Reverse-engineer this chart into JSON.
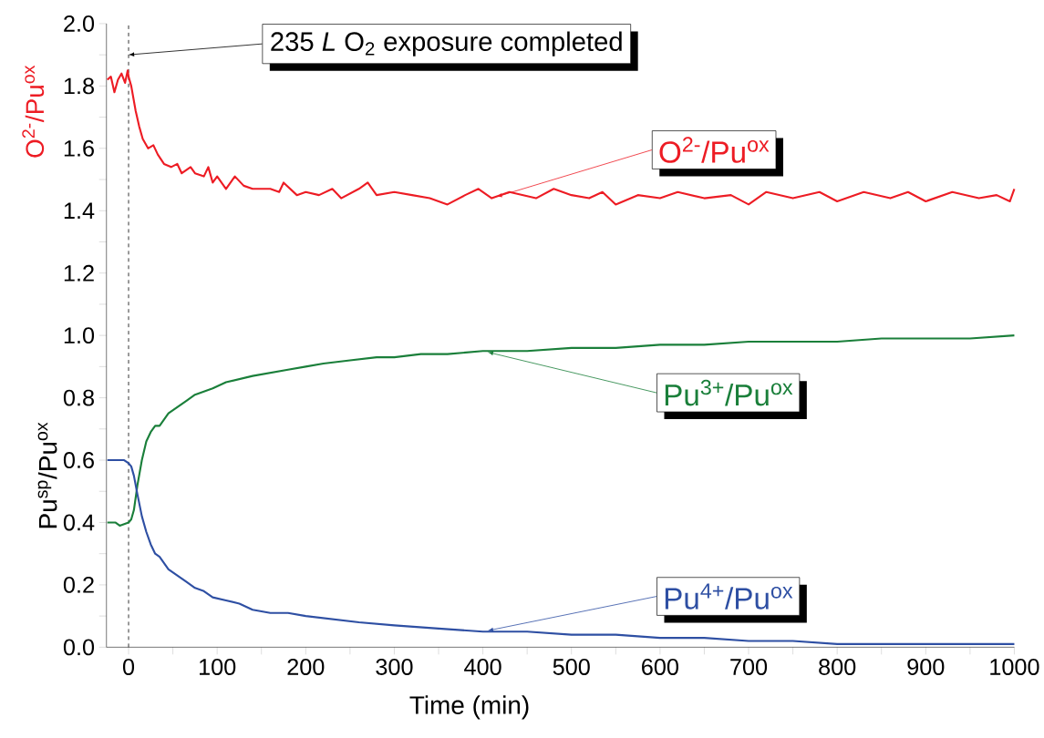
{
  "chart_data": {
    "type": "line",
    "xlabel": "Time (min)",
    "ylabel": "Pu$^{sp}$/Pu$^{ox}$",
    "annotations": [
      "O$^{2-}$/Pu$^{ox}$",
      {
        "text": "235 *L* O$_{2}$ exposure completed",
        "x": 0,
        "y": 1.9
      }
    ],
    "xlim": [
      -25,
      1000
    ],
    "ylim": [
      0,
      2
    ],
    "xticks": [
      0,
      {
        "value": 50,
        "label": null
      },
      100,
      {
        "value": 150,
        "label": null
      },
      200,
      {
        "value": 250,
        "label": null
      },
      300,
      {
        "value": 350,
        "label": null
      },
      400,
      {
        "value": 450,
        "label": null
      },
      500,
      {
        "value": 550,
        "label": null
      },
      600,
      {
        "value": 650,
        "label": null
      },
      700,
      {
        "value": 750,
        "label": null
      },
      800,
      {
        "value": 850,
        "label": null
      },
      900,
      {
        "value": 950,
        "label": null
      },
      1000
    ],
    "yticks": [
      {
        "value": 0,
        "label": "0.0"
      },
      {
        "value": 0.1,
        "label": null
      },
      {
        "value": 0.2,
        "label": "0.2"
      },
      {
        "value": 0.3,
        "label": null
      },
      {
        "value": 0.4,
        "label": "0.4"
      },
      {
        "value": 0.5,
        "label": null
      },
      {
        "value": 0.6,
        "label": "0.6"
      },
      {
        "value": 0.7,
        "label": null
      },
      {
        "value": 0.8,
        "label": "0.8"
      },
      {
        "value": 0.9,
        "label": null
      },
      {
        "value": 1.0,
        "label": "1.0"
      },
      {
        "value": 1.1,
        "label": null
      },
      {
        "value": 1.2,
        "label": "1.2"
      },
      {
        "value": 1.3,
        "label": null
      },
      {
        "value": 1.4,
        "label": "1.4"
      },
      {
        "value": 1.5,
        "label": null
      },
      {
        "value": 1.6,
        "label": "1.6"
      },
      {
        "value": 1.7,
        "label": null
      },
      {
        "value": 1.8,
        "label": "1.8"
      },
      {
        "value": 1.9,
        "label": null
      },
      {
        "value": 2.0,
        "label": "2.0"
      }
    ],
    "ref_lines": [
      {
        "axis": "x",
        "value": 0,
        "line_style": "dashed",
        "color": "#000000"
      }
    ],
    "series": [
      {
        "name": "O$^{2-}$/Pu$^{ox}$",
        "color": "#ed1c24",
        "x": [
          -24,
          -20,
          -16,
          -12,
          -8,
          -4,
          -1,
          0,
          3,
          8,
          12,
          16,
          22,
          28,
          33,
          40,
          48,
          55,
          60,
          70,
          75,
          85,
          90,
          95,
          100,
          110,
          120,
          130,
          140,
          160,
          170,
          175,
          190,
          200,
          215,
          230,
          240,
          260,
          270,
          280,
          300,
          320,
          340,
          360,
          380,
          395,
          410,
          430,
          460,
          480,
          500,
          520,
          535,
          550,
          575,
          600,
          620,
          650,
          680,
          700,
          720,
          750,
          780,
          800,
          830,
          860,
          880,
          900,
          930,
          960,
          980,
          995,
          1000
        ],
        "values": [
          1.82,
          1.83,
          1.78,
          1.82,
          1.84,
          1.81,
          1.85,
          1.83,
          1.8,
          1.72,
          1.67,
          1.63,
          1.6,
          1.61,
          1.58,
          1.55,
          1.54,
          1.55,
          1.52,
          1.54,
          1.52,
          1.51,
          1.54,
          1.49,
          1.51,
          1.47,
          1.51,
          1.48,
          1.47,
          1.47,
          1.46,
          1.49,
          1.45,
          1.46,
          1.45,
          1.47,
          1.44,
          1.47,
          1.49,
          1.45,
          1.46,
          1.45,
          1.44,
          1.42,
          1.45,
          1.47,
          1.44,
          1.46,
          1.44,
          1.47,
          1.45,
          1.44,
          1.46,
          1.42,
          1.45,
          1.44,
          1.46,
          1.44,
          1.45,
          1.42,
          1.46,
          1.44,
          1.46,
          1.43,
          1.46,
          1.44,
          1.46,
          1.43,
          1.46,
          1.44,
          1.45,
          1.43,
          1.47
        ]
      },
      {
        "name": "Pu$^{3+}$/Pu$^{ox}$",
        "color": "#1a7f3a",
        "x": [
          -24,
          -15,
          -10,
          0,
          3,
          6,
          10,
          15,
          20,
          25,
          30,
          35,
          40,
          45,
          55,
          65,
          75,
          85,
          95,
          110,
          125,
          140,
          160,
          180,
          200,
          220,
          250,
          280,
          300,
          330,
          360,
          400,
          450,
          500,
          550,
          600,
          650,
          700,
          750,
          800,
          850,
          900,
          950,
          1000
        ],
        "values": [
          0.4,
          0.4,
          0.39,
          0.4,
          0.41,
          0.44,
          0.52,
          0.6,
          0.66,
          0.69,
          0.71,
          0.71,
          0.73,
          0.75,
          0.77,
          0.79,
          0.81,
          0.82,
          0.83,
          0.85,
          0.86,
          0.87,
          0.88,
          0.89,
          0.9,
          0.91,
          0.92,
          0.93,
          0.93,
          0.94,
          0.94,
          0.95,
          0.95,
          0.96,
          0.96,
          0.97,
          0.97,
          0.98,
          0.98,
          0.98,
          0.99,
          0.99,
          0.99,
          1.0
        ]
      },
      {
        "name": "Pu$^{4+}$/Pu$^{ox}$",
        "color": "#2e4fa3",
        "x": [
          -24,
          -15,
          -5,
          0,
          3,
          6,
          10,
          15,
          20,
          25,
          30,
          35,
          40,
          45,
          55,
          65,
          75,
          85,
          95,
          110,
          125,
          140,
          160,
          180,
          200,
          230,
          260,
          300,
          350,
          400,
          450,
          500,
          550,
          600,
          650,
          700,
          750,
          800,
          850,
          900,
          950,
          1000
        ],
        "values": [
          0.6,
          0.6,
          0.6,
          0.59,
          0.58,
          0.55,
          0.49,
          0.42,
          0.37,
          0.33,
          0.3,
          0.29,
          0.27,
          0.25,
          0.23,
          0.21,
          0.19,
          0.18,
          0.16,
          0.15,
          0.14,
          0.12,
          0.11,
          0.11,
          0.1,
          0.09,
          0.08,
          0.07,
          0.06,
          0.05,
          0.05,
          0.04,
          0.04,
          0.03,
          0.03,
          0.02,
          0.02,
          0.01,
          0.01,
          0.01,
          0.01,
          0.01
        ]
      }
    ]
  }
}
